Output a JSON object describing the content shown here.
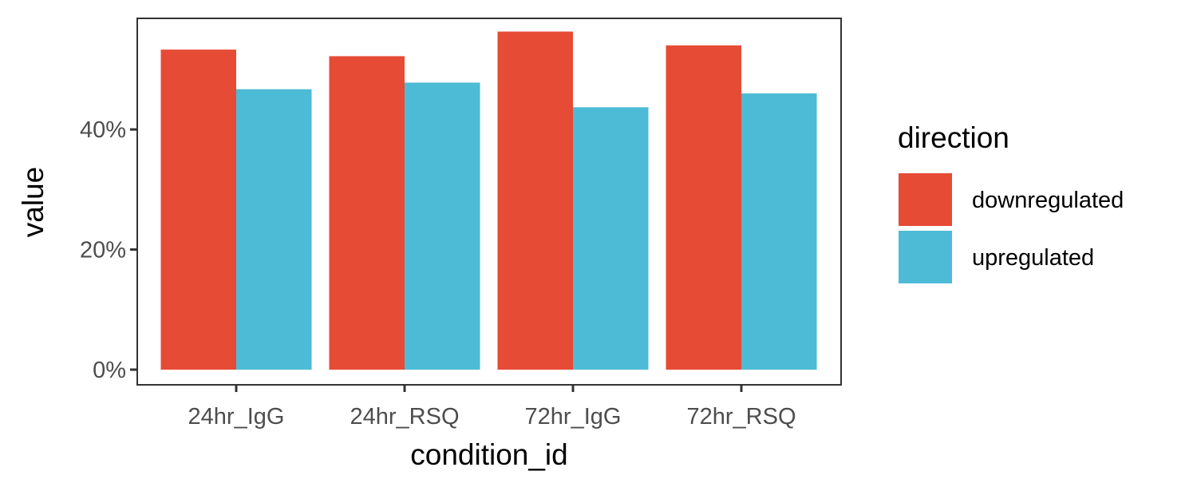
{
  "chart_data": {
    "type": "bar",
    "title": "",
    "xlabel": "condition_id",
    "ylabel": "value",
    "categories": [
      "24hr_IgG",
      "24hr_RSQ",
      "72hr_IgG",
      "72hr_RSQ"
    ],
    "series": [
      {
        "name": "downregulated",
        "color": "#E64B35",
        "values": [
          53.3,
          52.2,
          56.3,
          54.0
        ]
      },
      {
        "name": "upregulated",
        "color": "#4DBBD5",
        "values": [
          46.7,
          47.8,
          43.7,
          46.0
        ]
      }
    ],
    "ylim": [
      0,
      58.5
    ],
    "yticks": [
      0,
      20,
      40
    ],
    "ytick_labels": [
      "0%",
      "20%",
      "40%"
    ],
    "legend": {
      "title": "direction",
      "position": "right"
    },
    "grid": false
  }
}
